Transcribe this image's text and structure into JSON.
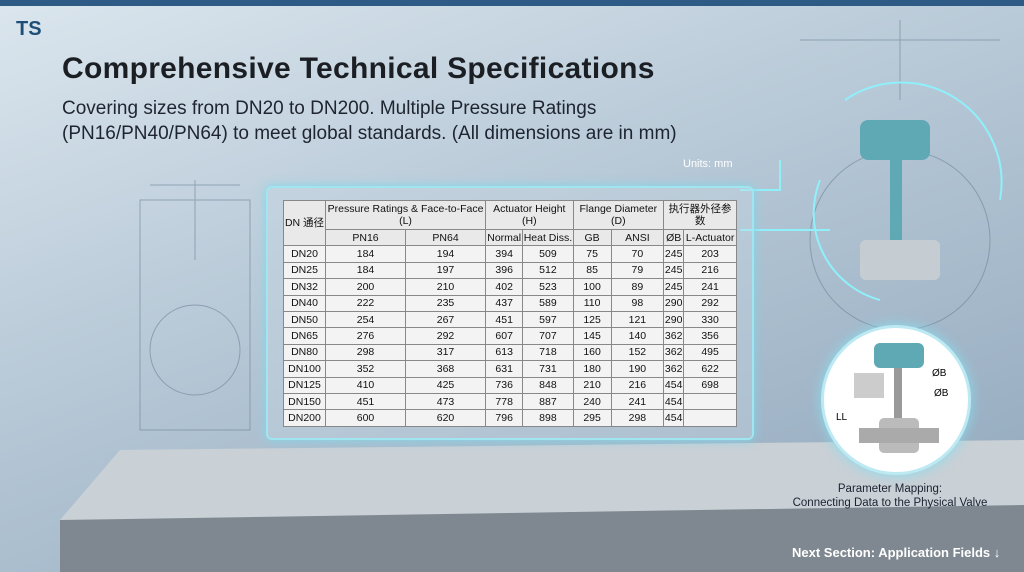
{
  "header": {
    "logo": "TS",
    "title": "Comprehensive Technical Specifications",
    "subtitle": "Covering sizes from DN20 to DN200. Multiple Pressure Ratings (PN16/PN40/PN64) to meet global standards. (All dimensions are in mm)"
  },
  "units": "Units: mm",
  "table": {
    "group_headers": [
      "DN 通径",
      "Pressure Ratings & Face-to-Face (L)",
      "Actuator Height (H)",
      "Flange Diameter (D)",
      "执行器外径参数"
    ],
    "sub_headers": [
      "PN16",
      "PN64",
      "Normal",
      "Heat Diss.",
      "GB",
      "ANSI",
      "ØB",
      "L-Actuator"
    ],
    "rows": [
      [
        "DN20",
        184,
        194,
        394,
        509,
        75,
        70,
        245,
        203
      ],
      [
        "DN25",
        184,
        197,
        396,
        512,
        85,
        79,
        245,
        216
      ],
      [
        "DN32",
        200,
        210,
        402,
        523,
        100,
        89,
        245,
        241
      ],
      [
        "DN40",
        222,
        235,
        437,
        589,
        110,
        98,
        290,
        292
      ],
      [
        "DN50",
        254,
        267,
        451,
        597,
        125,
        121,
        290,
        330
      ],
      [
        "DN65",
        276,
        292,
        607,
        707,
        145,
        140,
        362,
        356
      ],
      [
        "DN80",
        298,
        317,
        613,
        718,
        160,
        152,
        362,
        495
      ],
      [
        "DN100",
        352,
        368,
        631,
        731,
        180,
        190,
        362,
        622
      ],
      [
        "DN125",
        410,
        425,
        736,
        848,
        210,
        216,
        454,
        698
      ],
      [
        "DN150",
        451,
        473,
        778,
        887,
        240,
        241,
        454,
        null
      ],
      [
        "DN200",
        600,
        620,
        796,
        898,
        295,
        298,
        454,
        null
      ]
    ]
  },
  "valve_labels": [
    "ØB",
    "ØB",
    "LL"
  ],
  "caption": {
    "line1": "Parameter Mapping:",
    "line2": "Connecting Data to the Physical Valve"
  },
  "footer": {
    "next": "Next Section: Application Fields"
  }
}
